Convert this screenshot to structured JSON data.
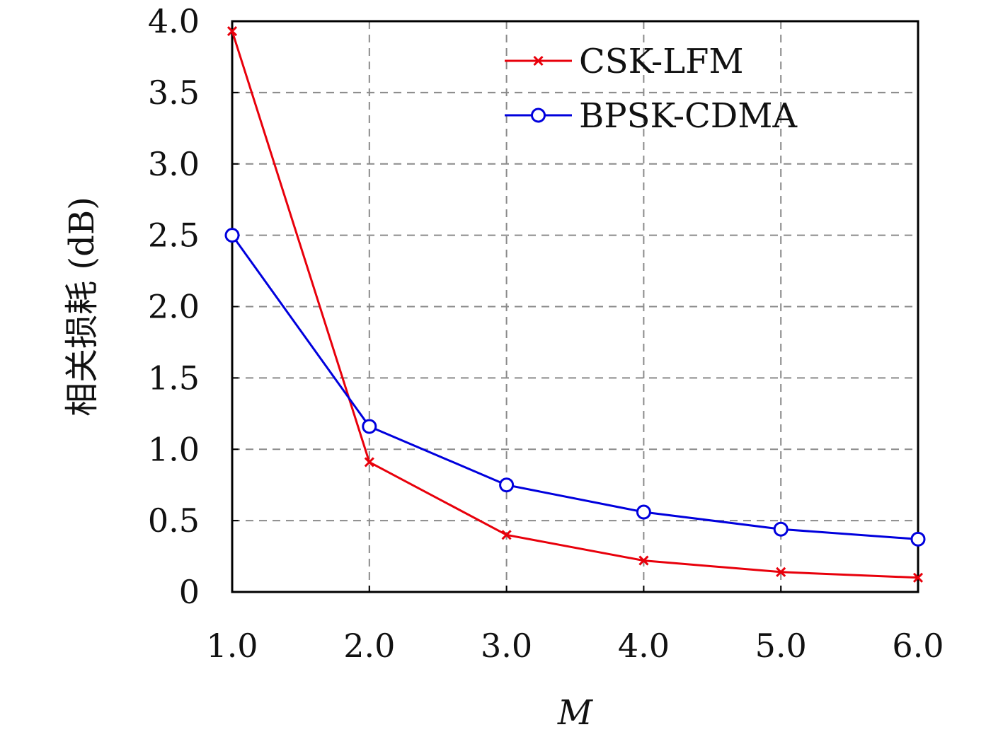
{
  "chart_data": {
    "type": "line",
    "title": "",
    "xlabel": "M",
    "ylabel": "相关损耗 (dB)",
    "xlim": [
      1.0,
      6.0
    ],
    "ylim": [
      0,
      4.0
    ],
    "x": [
      1.0,
      2.0,
      3.0,
      4.0,
      5.0,
      6.0
    ],
    "x_ticks": [
      "1.0",
      "2.0",
      "3.0",
      "4.0",
      "5.0",
      "6.0"
    ],
    "y_ticks": [
      "0",
      "0.5",
      "1.0",
      "1.5",
      "2.0",
      "2.5",
      "3.0",
      "3.5",
      "4.0"
    ],
    "grid": true,
    "legend_position": "top-right",
    "series": [
      {
        "name": "CSK-LFM",
        "color": "#e8000b",
        "marker": "x",
        "values": [
          3.93,
          0.91,
          0.4,
          0.22,
          0.14,
          0.1
        ]
      },
      {
        "name": "BPSK-CDMA",
        "color": "#0000dd",
        "marker": "o",
        "values": [
          2.5,
          1.16,
          0.75,
          0.56,
          0.44,
          0.37
        ]
      }
    ]
  }
}
